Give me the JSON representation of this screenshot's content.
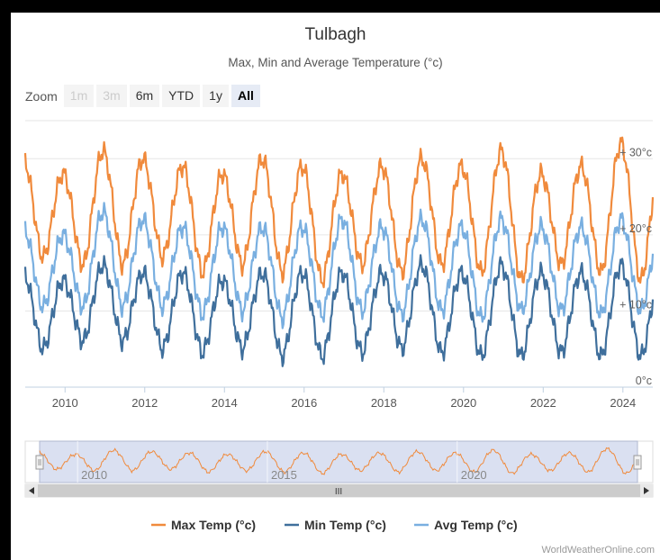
{
  "title": "Tulbagh",
  "subtitle": "Max, Min and Average Temperature (°c)",
  "range_selector": {
    "label": "Zoom",
    "buttons": [
      {
        "label": "1m",
        "state": "disabled"
      },
      {
        "label": "3m",
        "state": "disabled"
      },
      {
        "label": "6m",
        "state": "normal"
      },
      {
        "label": "YTD",
        "state": "normal"
      },
      {
        "label": "1y",
        "state": "normal"
      },
      {
        "label": "All",
        "state": "active"
      }
    ]
  },
  "navigator": {
    "labels": [
      "2010",
      "2015",
      "2020"
    ],
    "scrollbar_grip": "III"
  },
  "credit": "WorldWeatherOnline.com",
  "colors": {
    "max": "#f08a3c",
    "min": "#3f6f9c",
    "avg": "#79afe0",
    "navigator_fill": "#d4daee",
    "scrollbar": "#cccccc"
  },
  "chart_data": {
    "type": "line",
    "x_start": "2009",
    "x_end": "2024.75",
    "xlim": [
      2009,
      2024.75
    ],
    "ylim": [
      0,
      35
    ],
    "x_ticks": [
      "2010",
      "2012",
      "2014",
      "2016",
      "2018",
      "2020",
      "2022",
      "2024"
    ],
    "y_ticks": [
      "0°c",
      "+ 10°c",
      "+ 20°c",
      "+ 30°c"
    ],
    "y_tick_values": [
      0,
      10,
      20,
      30
    ],
    "grid": true,
    "legend_position": "bottom",
    "series": [
      {
        "key": "max",
        "name": "Max Temp (°c)",
        "peaks": [
          30,
          28,
          31,
          30,
          29,
          28,
          30,
          29,
          28,
          29,
          30,
          29,
          31,
          28,
          29,
          32,
          30,
          31
        ],
        "troughs": [
          17,
          16,
          16,
          17,
          15,
          16,
          15,
          14,
          16,
          15,
          16,
          15,
          14,
          16,
          15,
          14,
          15,
          13
        ]
      },
      {
        "key": "avg",
        "name": "Avg Temp (°c)",
        "peaks": [
          21,
          20,
          23,
          22,
          21,
          21,
          21,
          21,
          22,
          21,
          22,
          21,
          22,
          21,
          21,
          22,
          21,
          20
        ],
        "troughs": [
          10.5,
          10.5,
          10.5,
          10.5,
          9.5,
          10,
          9,
          9.5,
          10,
          9.5,
          10,
          9,
          10,
          10,
          9.5,
          10,
          9,
          8
        ]
      },
      {
        "key": "min",
        "name": "Min Temp (°c)",
        "peaks": [
          15,
          14,
          16,
          15,
          15,
          14,
          15,
          15,
          15,
          15,
          16,
          15,
          16,
          15,
          15,
          16,
          15,
          14
        ],
        "troughs": [
          5,
          6,
          6,
          5,
          4.5,
          5,
          4,
          4,
          4.5,
          5,
          4.5,
          4,
          4,
          4.5,
          4,
          4,
          4,
          3
        ]
      }
    ]
  }
}
